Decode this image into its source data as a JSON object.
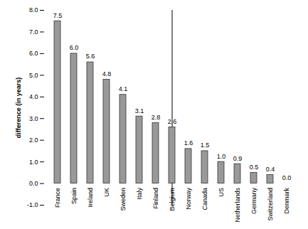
{
  "chart_data": {
    "type": "bar",
    "y_label": "difference (in years)",
    "categories": [
      "France",
      "Spain",
      "Ireland",
      "UK",
      "Sweden",
      "Italy",
      "Finland",
      "Belgium",
      "Norway",
      "Canada",
      "US",
      "Netherlands",
      "Germany",
      "Switzerland",
      "Denmark"
    ],
    "values": [
      7.5,
      6.0,
      5.6,
      4.8,
      4.1,
      3.1,
      2.8,
      2.6,
      1.6,
      1.5,
      1.0,
      0.9,
      0.5,
      0.4,
      0.0
    ],
    "value_labels": [
      "7.5",
      "6.0",
      "5.6",
      "4.8",
      "4.1",
      "3.1",
      "2.8",
      "2.6",
      "1.6",
      "1.5",
      "1.0",
      "0.9",
      "0.5",
      "0.4",
      "0.0"
    ],
    "color": "#999999",
    "ylim": [
      -1,
      8
    ],
    "yticks": [
      {
        "value": -1,
        "label": "-1.0"
      },
      {
        "value": 0,
        "label": "0.0"
      },
      {
        "value": 1,
        "label": "1.0"
      },
      {
        "value": 2,
        "label": "2.0"
      },
      {
        "value": 3,
        "label": "3.0"
      },
      {
        "value": 4,
        "label": "4.0"
      },
      {
        "value": 5,
        "label": "5.0"
      },
      {
        "value": 6,
        "label": "6.0"
      },
      {
        "value": 7,
        "label": "7.0"
      },
      {
        "value": 8,
        "label": "8.0"
      }
    ],
    "grid": false,
    "data_labels": true
  }
}
